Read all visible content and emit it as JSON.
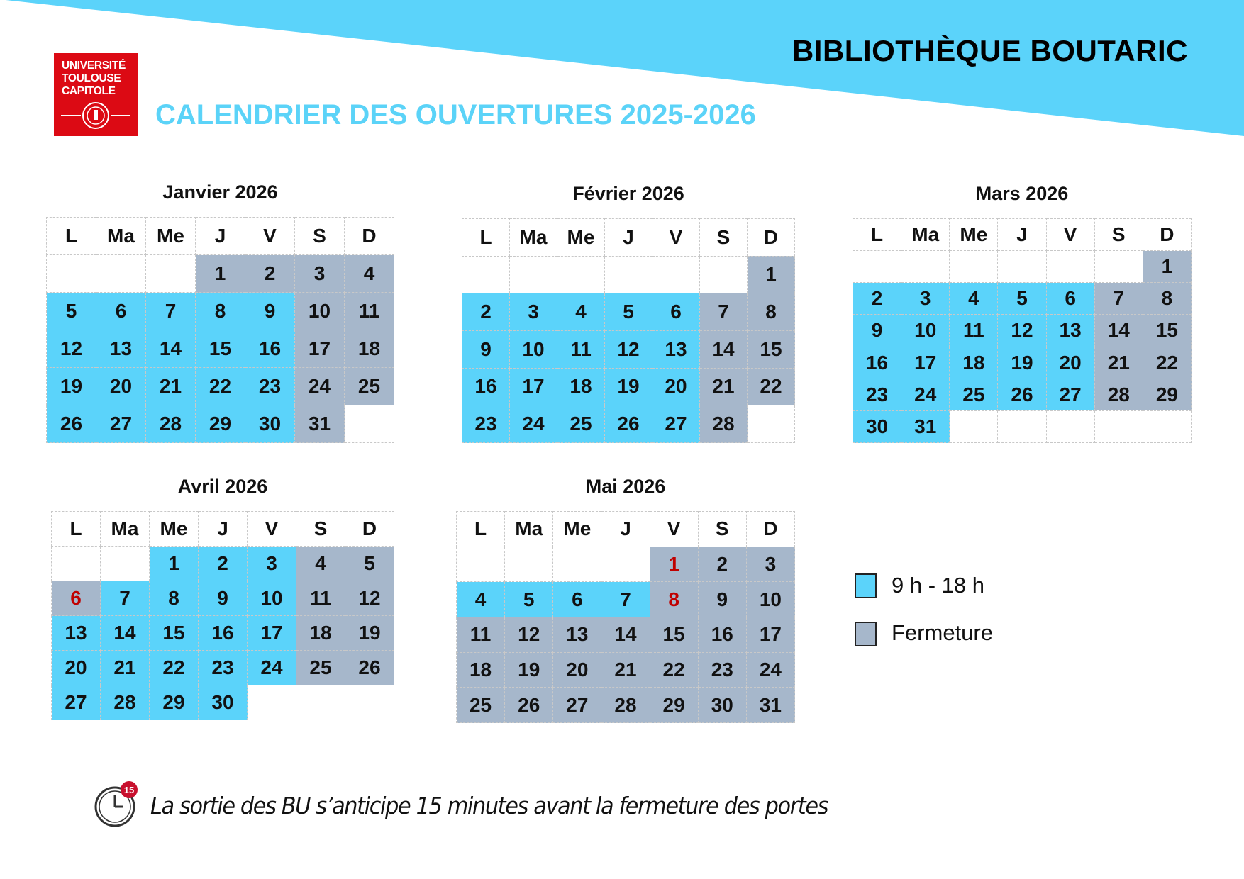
{
  "header": {
    "library_name": "BIBLIOTHÈQUE BOUTARIC",
    "title": "CALENDRIER DES OUVERTURES 2025-2026",
    "logo_text": [
      "UNIVERSITÉ",
      "TOULOUSE",
      "CAPITOLE"
    ]
  },
  "colors": {
    "open": "#5bd3fa",
    "closed": "#a6b7cb",
    "holiday_text": "#c00000",
    "accent": "#5bd3f8",
    "logo_red": "#dc0a14"
  },
  "weekdays": [
    "L",
    "Ma",
    "Me",
    "J",
    "V",
    "S",
    "D"
  ],
  "calendars": [
    {
      "title": "Janvier 2026",
      "first_weekday": 3,
      "num_days": 31,
      "open_days": [
        5,
        6,
        7,
        8,
        9,
        12,
        13,
        14,
        15,
        16,
        19,
        20,
        21,
        22,
        23,
        26,
        27,
        28,
        29,
        30
      ],
      "holidays": []
    },
    {
      "title": "Février 2026",
      "first_weekday": 6,
      "num_days": 28,
      "open_days": [
        2,
        3,
        4,
        5,
        6,
        9,
        10,
        11,
        12,
        13,
        16,
        17,
        18,
        19,
        20,
        23,
        24,
        25,
        26,
        27
      ],
      "holidays": []
    },
    {
      "title": "Mars 2026",
      "first_weekday": 6,
      "num_days": 31,
      "open_days": [
        2,
        3,
        4,
        5,
        6,
        9,
        10,
        11,
        12,
        13,
        16,
        17,
        18,
        19,
        20,
        23,
        24,
        25,
        26,
        27,
        30,
        31
      ],
      "holidays": []
    },
    {
      "title": "Avril 2026",
      "first_weekday": 2,
      "num_days": 30,
      "open_days": [
        1,
        2,
        3,
        7,
        8,
        9,
        10,
        13,
        14,
        15,
        16,
        17,
        20,
        21,
        22,
        23,
        24,
        27,
        28,
        29,
        30
      ],
      "holidays": [
        6
      ]
    },
    {
      "title": "Mai 2026",
      "first_weekday": 4,
      "num_days": 31,
      "open_days": [
        4,
        5,
        6,
        7
      ],
      "holidays": [
        1,
        8
      ]
    }
  ],
  "legend": [
    {
      "label": "9 h - 18 h",
      "status": "open"
    },
    {
      "label": "Fermeture",
      "status": "closed"
    }
  ],
  "footer": {
    "icon": "stopwatch-icon",
    "badge": "15",
    "text": "La sortie des BU s’anticipe 15 minutes avant la fermeture des portes"
  }
}
